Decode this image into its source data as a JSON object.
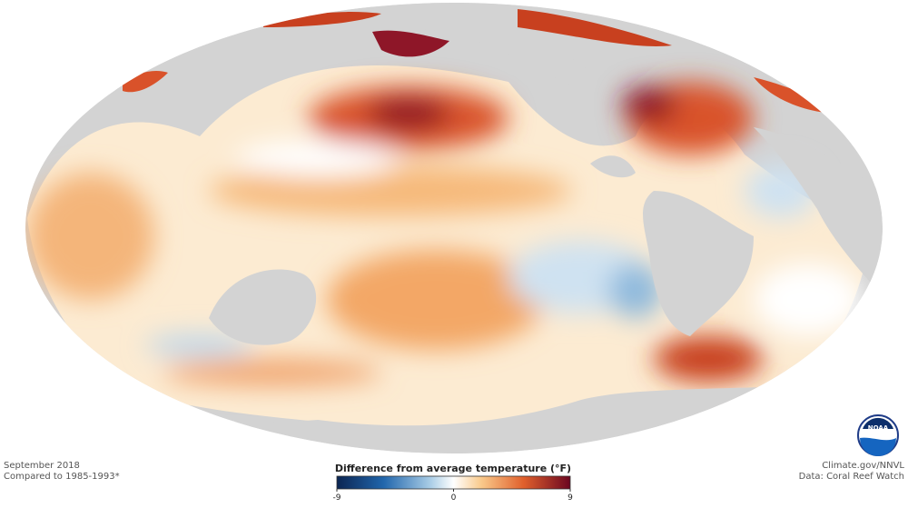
{
  "map": {
    "left_note": {
      "date": "September 2018",
      "baseline": "Compared to 1985-1993*"
    },
    "right_note": {
      "credit": "Climate.gov/NNVL",
      "source": "Data: Coral Reef Watch"
    },
    "legend": {
      "title": "Difference from average temperature (°F)",
      "ticks": [
        -9,
        0,
        9
      ]
    },
    "logo": "NOAA"
  }
}
